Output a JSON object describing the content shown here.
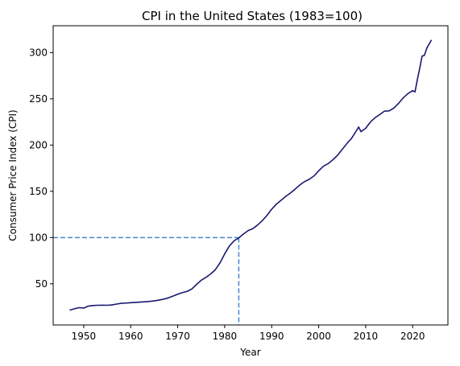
{
  "chart_data": {
    "type": "line",
    "title": "CPI in the United States (1983=100)",
    "xlabel": "Year",
    "ylabel": "Consumer Price Index (CPI)",
    "xlim": [
      1943.5,
      2027.5
    ],
    "ylim": [
      5.5,
      329
    ],
    "xticks": [
      1950,
      1960,
      1970,
      1980,
      1990,
      2000,
      2010,
      2020
    ],
    "yticks": [
      50,
      100,
      150,
      200,
      250,
      300
    ],
    "grid": false,
    "line_color": "#191970",
    "reference_color": "#4a86d0",
    "reference": {
      "x": 1983,
      "y": 100
    },
    "series": [
      {
        "x": [
          1947,
          1948,
          1949,
          1950,
          1951,
          1952,
          1953,
          1954,
          1955,
          1956,
          1957,
          1958,
          1959,
          1960,
          1961,
          1962,
          1963,
          1964,
          1965,
          1966,
          1967,
          1968,
          1969,
          1970,
          1971,
          1972,
          1973,
          1974,
          1975,
          1976,
          1977,
          1978,
          1979,
          1980,
          1981,
          1982,
          1983,
          1984,
          1985,
          1986,
          1987,
          1988,
          1989,
          1990,
          1991,
          1992,
          1993,
          1994,
          1995,
          1996,
          1997,
          1998,
          1999,
          2000,
          2001,
          2002,
          2003,
          2004,
          2005,
          2006,
          2007,
          2008,
          2008.5,
          2009,
          2010,
          2011,
          2012,
          2013,
          2014,
          2015,
          2016,
          2017,
          2018,
          2019,
          2020,
          2020.5,
          2021,
          2021.5,
          2022,
          2022.5,
          2023,
          2024
        ],
        "y": [
          21.5,
          23.0,
          24.2,
          23.8,
          25.9,
          26.5,
          26.8,
          26.9,
          26.8,
          27.2,
          28.1,
          28.9,
          29.2,
          29.6,
          29.9,
          30.2,
          30.6,
          31.0,
          31.5,
          32.4,
          33.4,
          34.8,
          36.7,
          38.8,
          40.5,
          41.8,
          44.4,
          49.3,
          53.8,
          56.9,
          60.6,
          65.2,
          72.6,
          82.4,
          90.9,
          96.5,
          99.6,
          103.9,
          107.6,
          109.6,
          113.6,
          118.3,
          124.0,
          130.7,
          136.2,
          140.3,
          144.5,
          148.2,
          152.4,
          156.9,
          160.5,
          163.0,
          166.6,
          172.2,
          177.1,
          179.9,
          184.0,
          188.9,
          195.3,
          201.6,
          207.3,
          215.3,
          219.5,
          214.5,
          218.1,
          224.9,
          229.6,
          233.0,
          236.7,
          237.0,
          240.0,
          245.1,
          251.1,
          255.7,
          258.8,
          257.5,
          270.9,
          283.0,
          296.2,
          297.0,
          304.7,
          313.7
        ]
      }
    ]
  }
}
